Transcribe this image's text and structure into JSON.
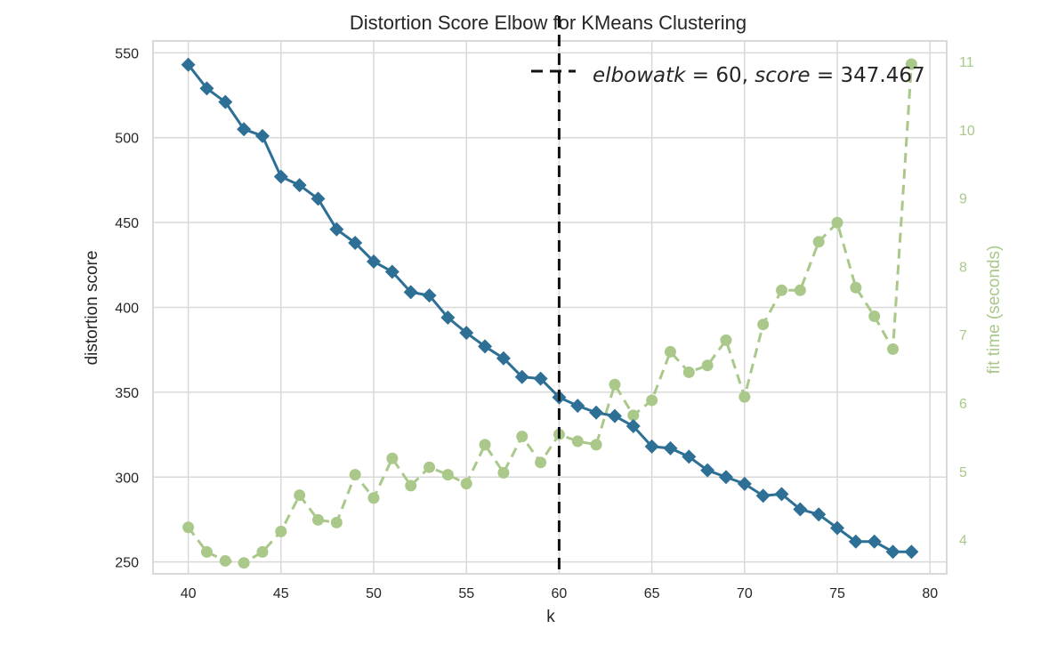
{
  "chart_data": {
    "type": "line",
    "title": "Distortion Score Elbow for KMeans Clustering",
    "xlabel": "k",
    "ylabel": "distortion score",
    "ylabel_right": "fit time (seconds)",
    "xlim": [
      38.1,
      80.9
    ],
    "ylim": [
      243,
      557
    ],
    "ylim_right": [
      3.5,
      11.3
    ],
    "x_ticks": [
      "40",
      "45",
      "50",
      "55",
      "60",
      "65",
      "70",
      "75",
      "80"
    ],
    "y_ticks": [
      "250",
      "300",
      "350",
      "400",
      "450",
      "500",
      "550"
    ],
    "y_ticks_right": [
      "4",
      "5",
      "6",
      "7",
      "8",
      "9",
      "10",
      "11"
    ],
    "grid": true,
    "legend_position": "top-right",
    "legend_label": "elbow at k = 60, score = 347.467",
    "legend_parts": {
      "italic_1": "elbowatk",
      "mid": " = 60, ",
      "italic_2": "score",
      "end": " = 347.467"
    },
    "elbow": {
      "k": 60,
      "score": 347.467
    },
    "x": [
      40,
      41,
      42,
      43,
      44,
      45,
      46,
      47,
      48,
      49,
      50,
      51,
      52,
      53,
      54,
      55,
      56,
      57,
      58,
      59,
      60,
      61,
      62,
      63,
      64,
      65,
      66,
      67,
      68,
      69,
      70,
      71,
      72,
      73,
      74,
      75,
      76,
      77,
      78,
      79
    ],
    "series": [
      {
        "name": "distortion score",
        "axis": "left",
        "color": "#2e6f96",
        "marker": "diamond",
        "linestyle": "solid",
        "values": [
          543,
          529,
          521,
          505,
          501,
          477,
          472,
          464,
          446,
          438,
          427,
          421,
          409,
          407,
          394,
          385,
          377,
          370,
          359,
          358,
          347,
          342,
          338,
          336,
          330,
          318,
          317,
          312,
          304,
          300,
          296,
          289,
          290,
          281,
          278,
          270,
          262,
          262,
          256,
          256
        ]
      },
      {
        "name": "fit time (seconds)",
        "axis": "right",
        "color": "#a9c889",
        "marker": "circle",
        "linestyle": "dashed",
        "values": [
          4.18,
          3.82,
          3.69,
          3.66,
          3.82,
          4.12,
          4.65,
          4.29,
          4.25,
          4.95,
          4.61,
          5.19,
          4.79,
          5.06,
          4.95,
          4.82,
          5.39,
          4.98,
          5.51,
          5.13,
          5.54,
          5.44,
          5.39,
          6.27,
          5.82,
          6.04,
          6.75,
          6.45,
          6.55,
          6.92,
          6.09,
          7.15,
          7.65,
          7.65,
          8.36,
          8.64,
          7.69,
          7.27,
          6.79,
          10.96
        ]
      }
    ]
  }
}
